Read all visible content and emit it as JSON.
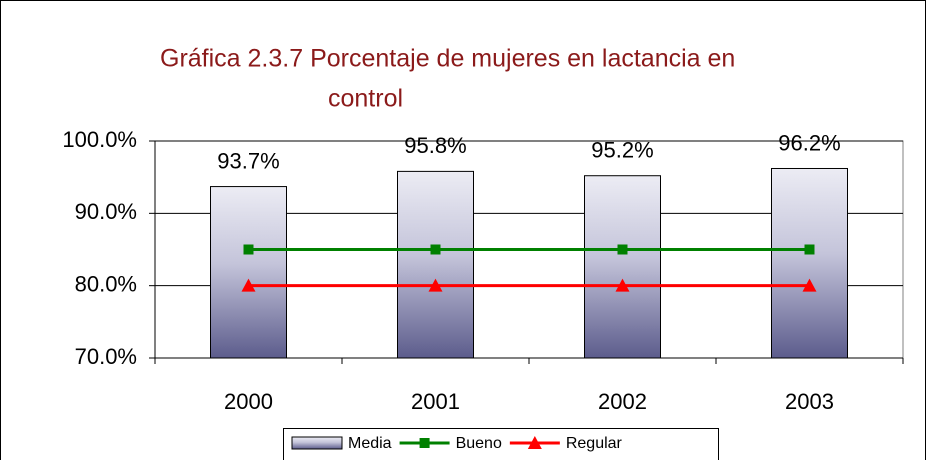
{
  "chart_data": {
    "type": "bar",
    "title": [
      "Gráfica 2.3.7 Porcentaje de mujeres en lactancia en",
      "control"
    ],
    "categories": [
      "2000",
      "2001",
      "2002",
      "2003"
    ],
    "series": [
      {
        "name": "Media",
        "type": "bar",
        "color": "#5c5c8c",
        "values": [
          93.7,
          95.8,
          95.2,
          96.2
        ],
        "value_labels": [
          "93.7%",
          "95.8%",
          "95.2%",
          "96.2%"
        ]
      },
      {
        "name": "Bueno",
        "type": "line",
        "marker": "square",
        "color": "#008000",
        "values": [
          85,
          85,
          85,
          85
        ]
      },
      {
        "name": "Regular",
        "type": "line",
        "marker": "triangle",
        "color": "#ff0000",
        "values": [
          80,
          80,
          80,
          80
        ]
      }
    ],
    "ylim": [
      70,
      100
    ],
    "yticks": [
      {
        "value": 70,
        "label": "70.0%"
      },
      {
        "value": 80,
        "label": "80.0%"
      },
      {
        "value": 90,
        "label": "90.0%"
      },
      {
        "value": 100,
        "label": "100.0%"
      }
    ],
    "grid": true,
    "legend": "bottom"
  }
}
